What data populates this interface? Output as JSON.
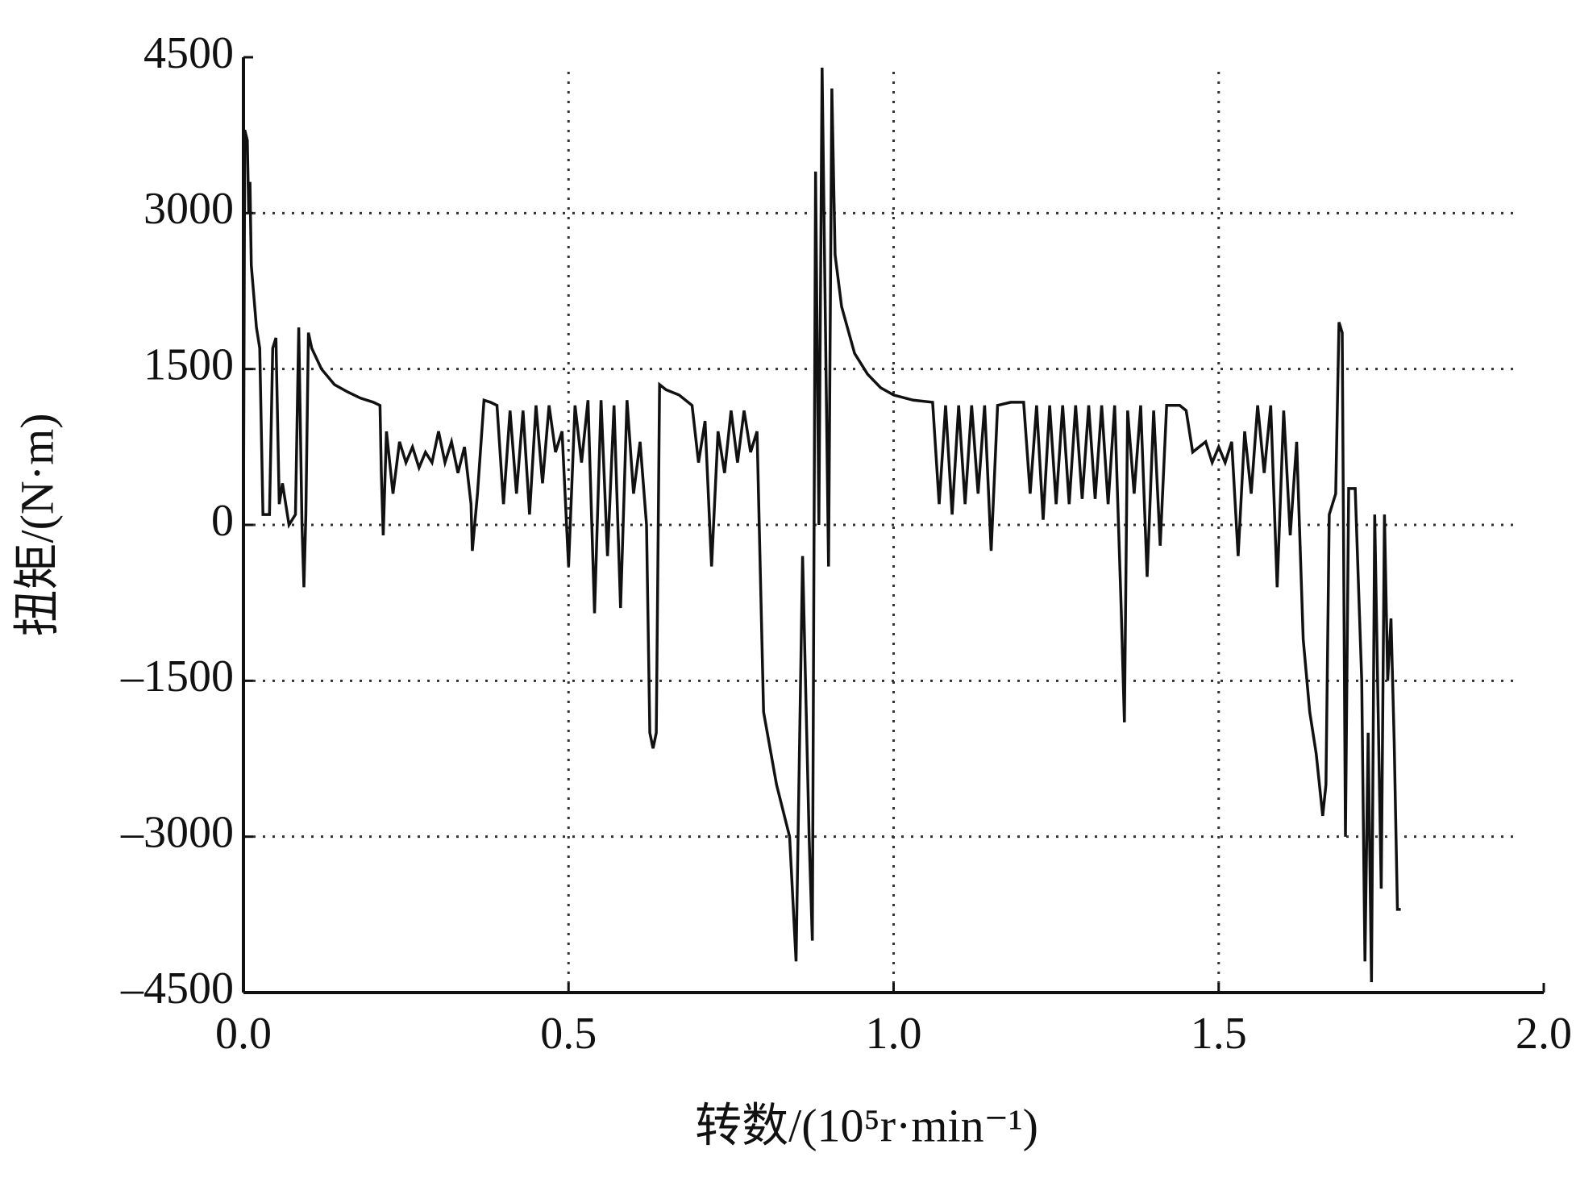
{
  "chart_data": {
    "type": "line",
    "xlabel": "转数/(10⁵r·min⁻¹)",
    "ylabel": "扭矩/(N·m)",
    "color": "#111111",
    "grid": true,
    "xlim": [
      0,
      2
    ],
    "ylim": [
      -4500,
      4500
    ],
    "xticks": [
      {
        "value": 0,
        "label": "0.0"
      },
      0.5,
      {
        "value": 1,
        "label": "1.0"
      },
      1.5,
      {
        "value": 2,
        "label": "2.0"
      }
    ],
    "yticks": [
      {
        "value": -4500,
        "label": "–4500"
      },
      {
        "value": -3000,
        "label": "–3000"
      },
      {
        "value": -1500,
        "label": "–1500"
      },
      0,
      1500,
      3000,
      4500
    ],
    "x": [
      0,
      0.002,
      0.006,
      0.008,
      0.01,
      0.012,
      0.016,
      0.02,
      0.025,
      0.03,
      0.04,
      0.045,
      0.05,
      0.055,
      0.06,
      0.07,
      0.08,
      0.085,
      0.09,
      0.093,
      0.096,
      0.1,
      0.105,
      0.12,
      0.14,
      0.16,
      0.18,
      0.2,
      0.21,
      0.212,
      0.215,
      0.22,
      0.23,
      0.24,
      0.25,
      0.26,
      0.27,
      0.28,
      0.29,
      0.3,
      0.31,
      0.32,
      0.33,
      0.34,
      0.35,
      0.352,
      0.36,
      0.37,
      0.38,
      0.39,
      0.4,
      0.41,
      0.42,
      0.43,
      0.44,
      0.45,
      0.46,
      0.47,
      0.48,
      0.49,
      0.5,
      0.51,
      0.52,
      0.53,
      0.54,
      0.55,
      0.56,
      0.57,
      0.58,
      0.59,
      0.6,
      0.61,
      0.62,
      0.625,
      0.63,
      0.635,
      0.64,
      0.65,
      0.67,
      0.69,
      0.7,
      0.71,
      0.72,
      0.73,
      0.74,
      0.75,
      0.76,
      0.77,
      0.78,
      0.79,
      0.8,
      0.82,
      0.84,
      0.85,
      0.86,
      0.87,
      0.875,
      0.88,
      0.885,
      0.89,
      0.9,
      0.905,
      0.91,
      0.92,
      0.94,
      0.96,
      0.98,
      1.0,
      1.03,
      1.06,
      1.07,
      1.08,
      1.09,
      1.1,
      1.11,
      1.12,
      1.13,
      1.14,
      1.15,
      1.16,
      1.18,
      1.2,
      1.21,
      1.22,
      1.23,
      1.24,
      1.25,
      1.26,
      1.27,
      1.28,
      1.29,
      1.3,
      1.31,
      1.32,
      1.33,
      1.34,
      1.35,
      1.355,
      1.36,
      1.37,
      1.38,
      1.39,
      1.4,
      1.41,
      1.42,
      1.44,
      1.45,
      1.46,
      1.48,
      1.49,
      1.5,
      1.51,
      1.52,
      1.53,
      1.54,
      1.55,
      1.56,
      1.57,
      1.58,
      1.59,
      1.6,
      1.61,
      1.62,
      1.63,
      1.64,
      1.65,
      1.66,
      1.665,
      1.67,
      1.68,
      1.685,
      1.69,
      1.695,
      1.7,
      1.71,
      1.72,
      1.725,
      1.73,
      1.735,
      1.74,
      1.75,
      1.755,
      1.76,
      1.765,
      1.77,
      1.775,
      1.78
    ],
    "values": [
      0,
      3800,
      3700,
      3000,
      3300,
      2500,
      2200,
      1900,
      1700,
      100,
      100,
      1700,
      1800,
      200,
      400,
      0,
      100,
      1900,
      0,
      -600,
      100,
      1850,
      1700,
      1500,
      1350,
      1280,
      1220,
      1180,
      1150,
      500,
      -100,
      900,
      300,
      800,
      600,
      750,
      550,
      700,
      600,
      900,
      600,
      800,
      500,
      750,
      200,
      -250,
      300,
      1200,
      1180,
      1150,
      200,
      1100,
      300,
      1100,
      100,
      1150,
      400,
      1150,
      700,
      900,
      -400,
      1150,
      600,
      1200,
      -850,
      1200,
      -300,
      1150,
      -800,
      1200,
      300,
      800,
      0,
      -2000,
      -2150,
      -2000,
      1350,
      1300,
      1250,
      1150,
      600,
      1000,
      -400,
      900,
      500,
      1100,
      600,
      1100,
      700,
      900,
      -1800,
      -2500,
      -3000,
      -4200,
      -300,
      -3000,
      -4000,
      3400,
      0,
      4400,
      -400,
      4200,
      2600,
      2100,
      1650,
      1450,
      1320,
      1250,
      1200,
      1180,
      200,
      1150,
      100,
      1150,
      200,
      1150,
      300,
      1150,
      -250,
      1150,
      1180,
      1180,
      300,
      1150,
      50,
      1150,
      200,
      1150,
      200,
      1150,
      250,
      1150,
      250,
      1150,
      200,
      1150,
      -800,
      -1900,
      1100,
      300,
      1150,
      -500,
      1100,
      -200,
      1150,
      1150,
      1100,
      700,
      800,
      600,
      750,
      600,
      800,
      -300,
      900,
      300,
      1150,
      500,
      1150,
      -600,
      1100,
      -100,
      800,
      -1100,
      -1800,
      -2200,
      -2800,
      -2500,
      100,
      300,
      1950,
      1850,
      -3000,
      350,
      350,
      -1500,
      -4200,
      -2000,
      -4400,
      100,
      -3500,
      100,
      -1500,
      -900,
      -2100,
      -3700,
      -3700
    ]
  }
}
